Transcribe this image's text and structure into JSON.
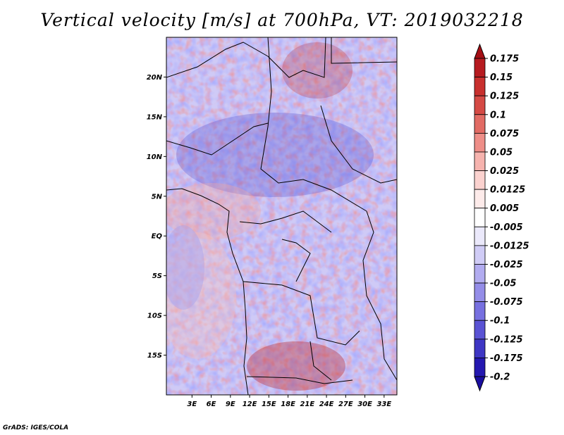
{
  "title": "Vertical velocity [m/s] at 700hPa, VT: 2019032218",
  "credit": "GrADS: IGES/COLA",
  "map": {
    "lon_range": [
      -1,
      35
    ],
    "lat_range": [
      -20,
      25
    ],
    "lat_ticks": [
      {
        "value": 20,
        "label": "20N"
      },
      {
        "value": 15,
        "label": "15N"
      },
      {
        "value": 10,
        "label": "10N"
      },
      {
        "value": 5,
        "label": "5N"
      },
      {
        "value": 0,
        "label": "EQ"
      },
      {
        "value": -5,
        "label": "5S"
      },
      {
        "value": -10,
        "label": "10S"
      },
      {
        "value": -15,
        "label": "15S"
      }
    ],
    "lon_ticks": [
      {
        "value": 3,
        "label": "3E"
      },
      {
        "value": 6,
        "label": "6E"
      },
      {
        "value": 9,
        "label": "9E"
      },
      {
        "value": 12,
        "label": "12E"
      },
      {
        "value": 15,
        "label": "15E"
      },
      {
        "value": 18,
        "label": "18E"
      },
      {
        "value": 21,
        "label": "21E"
      },
      {
        "value": 24,
        "label": "24E"
      },
      {
        "value": 27,
        "label": "27E"
      },
      {
        "value": 30,
        "label": "30E"
      },
      {
        "value": 33,
        "label": "33E"
      }
    ]
  },
  "colorbar": {
    "levels": [
      {
        "label": "0.175",
        "color": "#a50f15"
      },
      {
        "label": "0.15",
        "color": "#b61b20"
      },
      {
        "label": "0.125",
        "color": "#c8302e"
      },
      {
        "label": "0.1",
        "color": "#d54a45"
      },
      {
        "label": "0.075",
        "color": "#e26b64"
      },
      {
        "label": "0.05",
        "color": "#ee8e88"
      },
      {
        "label": "0.025",
        "color": "#f6b3ae"
      },
      {
        "label": "0.0125",
        "color": "#fbd2cf"
      },
      {
        "label": "0.005",
        "color": "#fdebea"
      },
      {
        "label": "-0.005",
        "color": "#ffffff"
      },
      {
        "label": "-0.0125",
        "color": "#ebe9fb"
      },
      {
        "label": "-0.025",
        "color": "#d0ccf6"
      },
      {
        "label": "-0.05",
        "color": "#b2acf0"
      },
      {
        "label": "-0.075",
        "color": "#948de8"
      },
      {
        "label": "-0.1",
        "color": "#7770e0"
      },
      {
        "label": "-0.125",
        "color": "#5a53d4"
      },
      {
        "label": "-0.175",
        "color": "#3e36c4"
      },
      {
        "label": "-0.2",
        "color": "#2418b0"
      }
    ],
    "top_color": "#a50f15",
    "bottom_color": "#1a0ea0"
  }
}
